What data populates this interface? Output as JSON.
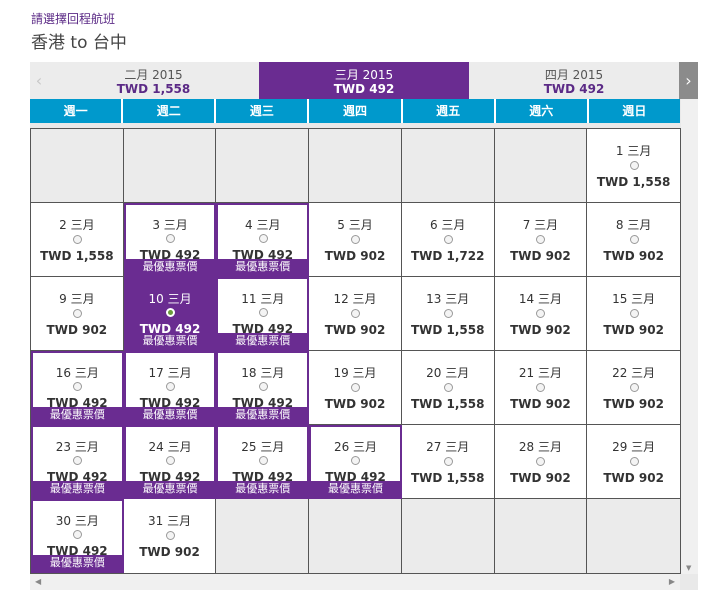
{
  "header": {
    "instruction": "請選擇回程航班",
    "route": "香港 to 台中"
  },
  "nav": {
    "prev_icon": "‹",
    "next_icon": "›"
  },
  "month_tabs": [
    {
      "name": "二月 2015",
      "price": "TWD 1,558",
      "active": false
    },
    {
      "name": "三月 2015",
      "price": "TWD 492",
      "active": true
    },
    {
      "name": "四月 2015",
      "price": "TWD 492",
      "active": false
    }
  ],
  "weekdays": [
    "週一",
    "週二",
    "週三",
    "週四",
    "週五",
    "週六",
    "週日"
  ],
  "best_label": "最優惠票價",
  "colors": {
    "brand_purple": "#6a2c91",
    "header_blue": "#0099cc"
  },
  "days": [
    {
      "date": "1 三月",
      "price": "TWD 1,558",
      "col": 7,
      "best": false
    },
    {
      "date": "2 三月",
      "price": "TWD 1,558",
      "col": 1,
      "best": false
    },
    {
      "date": "3 三月",
      "price": "TWD 492",
      "col": 2,
      "best": true
    },
    {
      "date": "4 三月",
      "price": "TWD 492",
      "col": 3,
      "best": true
    },
    {
      "date": "5 三月",
      "price": "TWD 902",
      "col": 4,
      "best": false
    },
    {
      "date": "6 三月",
      "price": "TWD 1,722",
      "col": 5,
      "best": false
    },
    {
      "date": "7 三月",
      "price": "TWD 902",
      "col": 6,
      "best": false
    },
    {
      "date": "8 三月",
      "price": "TWD 902",
      "col": 7,
      "best": false
    },
    {
      "date": "9 三月",
      "price": "TWD 902",
      "col": 1,
      "best": false
    },
    {
      "date": "10 三月",
      "price": "TWD 492",
      "col": 2,
      "best": true,
      "selected": true
    },
    {
      "date": "11 三月",
      "price": "TWD 492",
      "col": 3,
      "best": true
    },
    {
      "date": "12 三月",
      "price": "TWD 902",
      "col": 4,
      "best": false
    },
    {
      "date": "13 三月",
      "price": "TWD 1,558",
      "col": 5,
      "best": false
    },
    {
      "date": "14 三月",
      "price": "TWD 902",
      "col": 6,
      "best": false
    },
    {
      "date": "15 三月",
      "price": "TWD 902",
      "col": 7,
      "best": false
    },
    {
      "date": "16 三月",
      "price": "TWD 492",
      "col": 1,
      "best": true
    },
    {
      "date": "17 三月",
      "price": "TWD 492",
      "col": 2,
      "best": true
    },
    {
      "date": "18 三月",
      "price": "TWD 492",
      "col": 3,
      "best": true
    },
    {
      "date": "19 三月",
      "price": "TWD 902",
      "col": 4,
      "best": false
    },
    {
      "date": "20 三月",
      "price": "TWD 1,558",
      "col": 5,
      "best": false
    },
    {
      "date": "21 三月",
      "price": "TWD 902",
      "col": 6,
      "best": false
    },
    {
      "date": "22 三月",
      "price": "TWD 902",
      "col": 7,
      "best": false
    },
    {
      "date": "23 三月",
      "price": "TWD 492",
      "col": 1,
      "best": true
    },
    {
      "date": "24 三月",
      "price": "TWD 492",
      "col": 2,
      "best": true
    },
    {
      "date": "25 三月",
      "price": "TWD 492",
      "col": 3,
      "best": true
    },
    {
      "date": "26 三月",
      "price": "TWD 492",
      "col": 4,
      "best": true
    },
    {
      "date": "27 三月",
      "price": "TWD 1,558",
      "col": 5,
      "best": false
    },
    {
      "date": "28 三月",
      "price": "TWD 902",
      "col": 6,
      "best": false
    },
    {
      "date": "29 三月",
      "price": "TWD 902",
      "col": 7,
      "best": false
    },
    {
      "date": "30 三月",
      "price": "TWD 492",
      "col": 1,
      "best": true
    },
    {
      "date": "31 三月",
      "price": "TWD 902",
      "col": 2,
      "best": false
    }
  ],
  "scroll": {
    "up_icon": "▲",
    "down_icon": "▼",
    "left_icon": "◀",
    "right_icon": "▶"
  }
}
